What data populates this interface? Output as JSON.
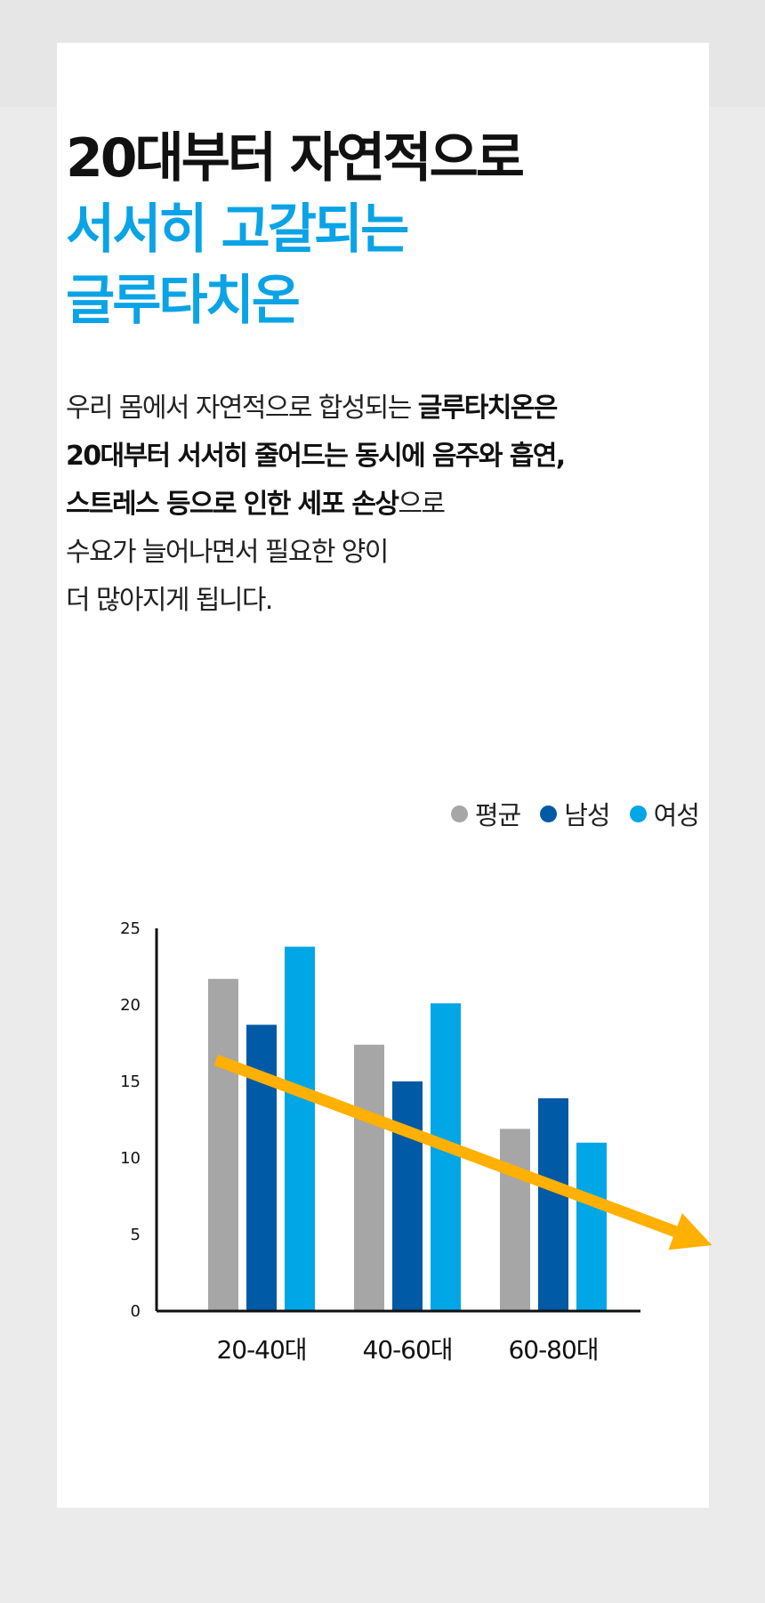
{
  "headline": {
    "line1": "20대부터 자연적으로",
    "line2": "서서히 고갈되는",
    "line3": "글루타치온"
  },
  "body": {
    "line1_a": "우리 몸에서 자연적으로 합성되는 ",
    "line1_b": "글루타치온은",
    "line2": "20대부터 서서히 줄어드는 동시에 음주와 흡연,",
    "line3_a": "스트레스 등으로 인한 세포 손상",
    "line3_b": "으로",
    "line4": "수요가 늘어나면서 필요한 양이",
    "line5": "더 많아지게 됩니다."
  },
  "colors": {
    "accent_blue": "#0aa3e6",
    "avg": "#a6a6a6",
    "male": "#005aa5",
    "female": "#00a6e6",
    "trend_arrow": "#ffb000"
  },
  "chart_data": {
    "type": "bar",
    "categories": [
      "20-40대",
      "40-60대",
      "60-80대"
    ],
    "series": [
      {
        "name": "평균",
        "color": "#a6a6a6",
        "values": [
          21.7,
          17.4,
          11.9
        ]
      },
      {
        "name": "남성",
        "color": "#005aa5",
        "values": [
          18.7,
          15.0,
          13.9
        ]
      },
      {
        "name": "여성",
        "color": "#00a6e6",
        "values": [
          23.8,
          20.1,
          11.0
        ]
      }
    ],
    "ylim": [
      0,
      25
    ],
    "yticks": [
      0,
      5,
      10,
      15,
      20,
      25
    ],
    "legend_position": "top-right",
    "grid": false,
    "trend_arrow": {
      "from": [
        0.2,
        16.4
      ],
      "to": [
        3.6,
        4.3
      ],
      "color": "#ffb000"
    }
  }
}
